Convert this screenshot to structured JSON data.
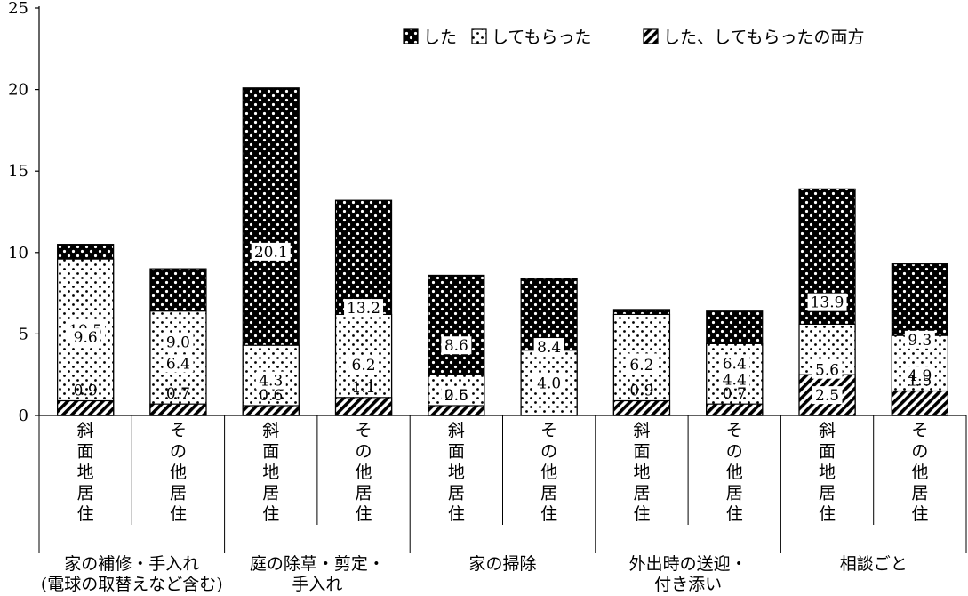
{
  "chart_data": {
    "type": "bar",
    "stacked": true,
    "ylim": [
      0,
      25
    ],
    "yticks": [
      0,
      5,
      10,
      15,
      20,
      25
    ],
    "grid": false,
    "legend_position": "top-right",
    "series": [
      {
        "name": "した",
        "pattern": "dense-dots",
        "values": [
          10.5,
          9.0,
          20.1,
          13.2,
          8.6,
          8.4,
          6.5,
          6.4,
          13.9,
          9.3
        ]
      },
      {
        "name": "してもらった",
        "pattern": "sparse-dots",
        "values": [
          9.6,
          6.4,
          4.3,
          6.2,
          2.5,
          4.0,
          6.2,
          4.4,
          5.6,
          4.9
        ]
      },
      {
        "name": "した、してもらったの両方",
        "pattern": "diagonal-hatch",
        "values": [
          0.9,
          0.7,
          0.6,
          1.1,
          0.6,
          0,
          0.9,
          0.7,
          2.5,
          1.5
        ]
      }
    ],
    "categories": [
      "斜面地居住",
      "その他居住",
      "斜面地居住",
      "その他居住",
      "斜面地居住",
      "その他居住",
      "斜面地居住",
      "その他居住",
      "斜面地居住",
      "その他居住"
    ],
    "category_labels": [
      {
        "series": "した",
        "labels": [
          "10.5",
          "9.0",
          "20.1",
          "13.2",
          "8.6",
          "8.4",
          "6.5",
          "6.4",
          "13.9",
          "9.3"
        ]
      },
      {
        "series": "してもらった",
        "labels": [
          "9.6",
          "6.4",
          "4.3",
          "6.2",
          "2.5",
          "4.0",
          "6.2",
          "4.4",
          "5.6",
          "4.9"
        ]
      },
      {
        "series": "した、してもらったの両方",
        "labels": [
          "0.9",
          "0.7",
          "0.6",
          "1.1",
          "0.6",
          "",
          "0.9",
          "0.7",
          "2.5",
          "1.5"
        ]
      }
    ],
    "groups": [
      {
        "lines": [
          "家の補修・手入れ",
          "(電球の取替えなど含む)"
        ],
        "span": [
          0,
          1
        ]
      },
      {
        "lines": [
          "庭の除草・剪定・",
          "手入れ"
        ],
        "span": [
          2,
          3
        ]
      },
      {
        "lines": [
          "家の掃除"
        ],
        "span": [
          4,
          5
        ]
      },
      {
        "lines": [
          "外出時の送迎・",
          "付き添い"
        ],
        "span": [
          6,
          7
        ]
      },
      {
        "lines": [
          "相談ごと"
        ],
        "span": [
          8,
          9
        ]
      }
    ]
  }
}
